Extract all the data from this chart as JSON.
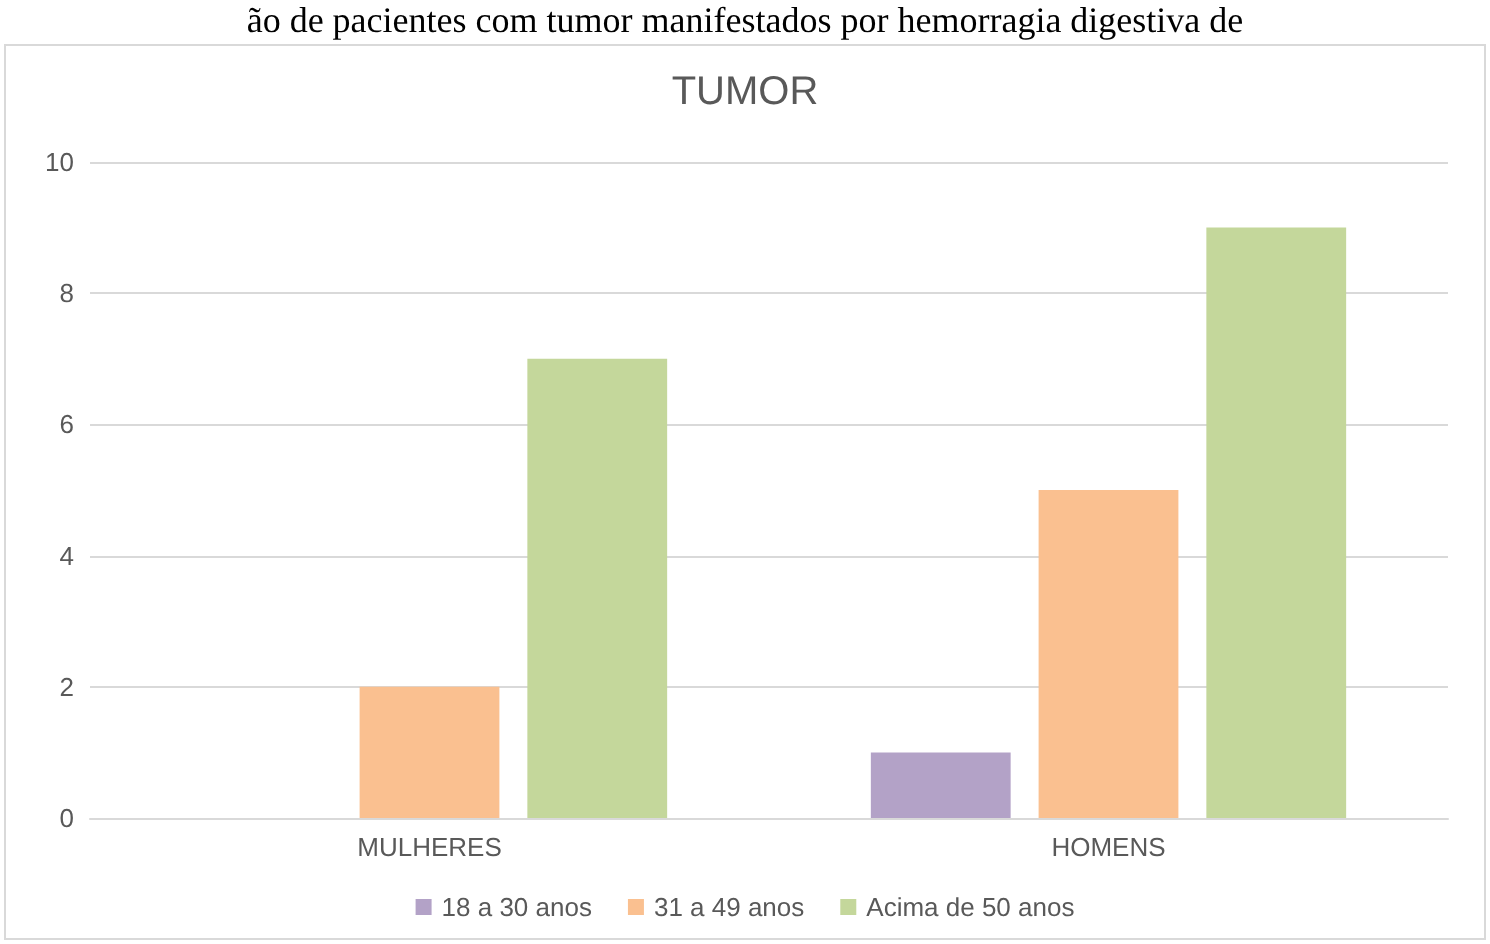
{
  "chart_data": {
    "type": "bar",
    "title": "TUMOR",
    "annotations": [
      "ão de pacientes com tumor manifestados por hemorragia digestiva de"
    ],
    "categories": [
      "MULHERES",
      "HOMENS"
    ],
    "series": [
      {
        "name": "18 a 30 anos",
        "color": "#b3a2c7",
        "values": [
          0,
          1
        ]
      },
      {
        "name": "31 a 49 anos",
        "color": "#fac090",
        "values": [
          2,
          5
        ]
      },
      {
        "name": "Acima de 50 anos",
        "color": "#c4d79b",
        "values": [
          7,
          9
        ]
      }
    ],
    "ylim": [
      0,
      10
    ],
    "yticks": [
      0,
      2,
      4,
      6,
      8,
      10
    ],
    "grid": "y",
    "legend": "bottom"
  }
}
